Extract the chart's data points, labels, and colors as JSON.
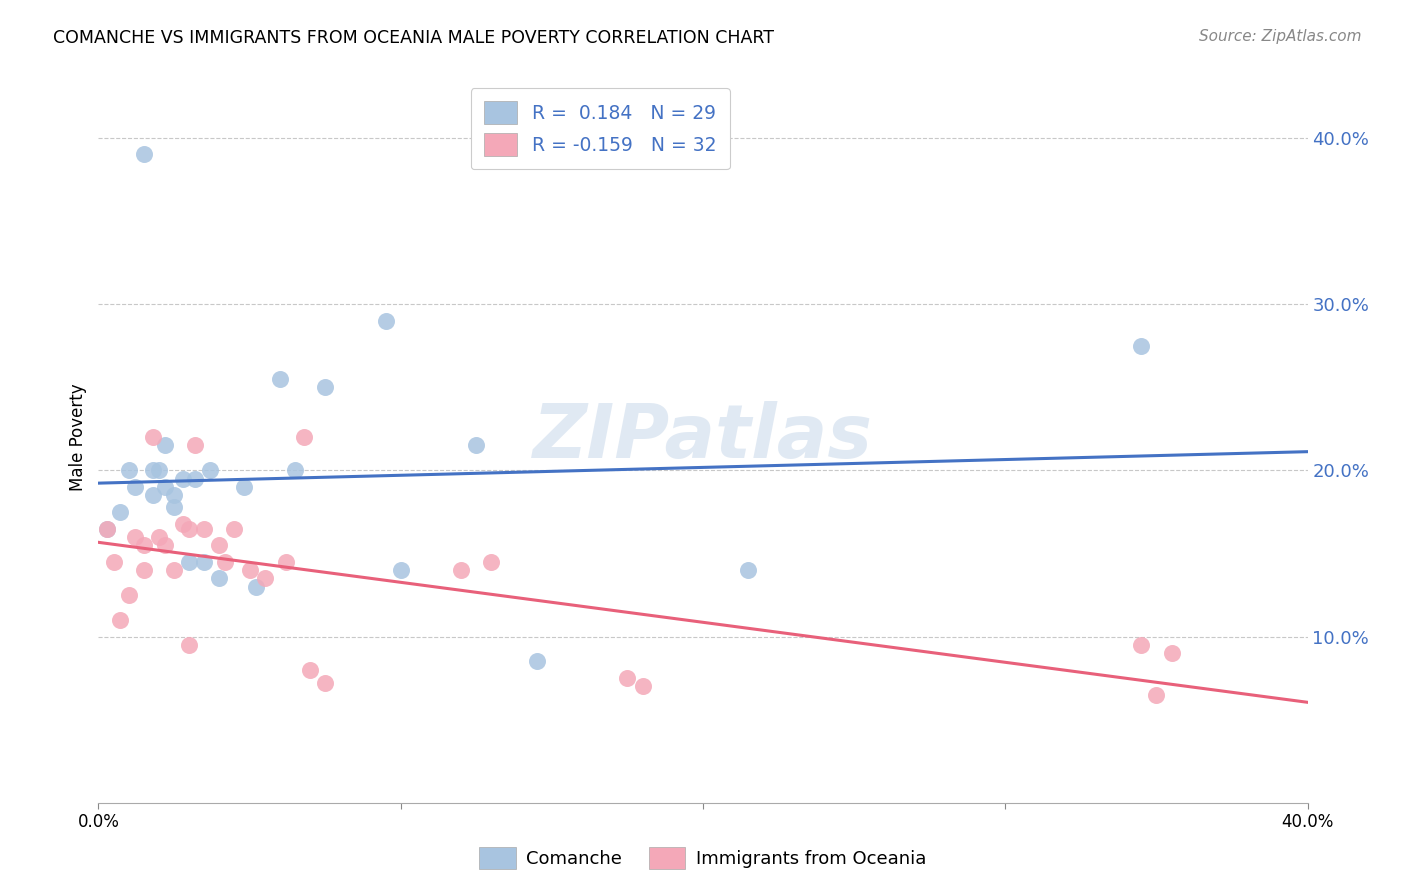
{
  "title": "COMANCHE VS IMMIGRANTS FROM OCEANIA MALE POVERTY CORRELATION CHART",
  "source": "Source: ZipAtlas.com",
  "ylabel": "Male Poverty",
  "watermark": "ZIPatlas",
  "xlim": [
    0.0,
    0.4
  ],
  "ylim": [
    0.0,
    0.44
  ],
  "yticks": [
    0.1,
    0.2,
    0.3,
    0.4
  ],
  "ytick_labels": [
    "10.0%",
    "20.0%",
    "30.0%",
    "40.0%"
  ],
  "xticks": [
    0.0,
    0.1,
    0.2,
    0.3,
    0.4
  ],
  "xtick_labels": [
    "0.0%",
    "",
    "",
    "",
    "40.0%"
  ],
  "comanche_R": 0.184,
  "comanche_N": 29,
  "oceania_R": -0.159,
  "oceania_N": 32,
  "comanche_color": "#a8c4e0",
  "oceania_color": "#f4a8b8",
  "comanche_line_color": "#4472c4",
  "oceania_line_color": "#e8607a",
  "background_color": "#ffffff",
  "grid_color": "#c8c8c8",
  "comanche_x": [
    0.003,
    0.007,
    0.01,
    0.012,
    0.015,
    0.018,
    0.018,
    0.02,
    0.022,
    0.022,
    0.025,
    0.025,
    0.028,
    0.03,
    0.032,
    0.035,
    0.037,
    0.04,
    0.048,
    0.052,
    0.06,
    0.065,
    0.075,
    0.095,
    0.1,
    0.125,
    0.145,
    0.215,
    0.345
  ],
  "comanche_y": [
    0.165,
    0.175,
    0.2,
    0.19,
    0.39,
    0.2,
    0.185,
    0.2,
    0.19,
    0.215,
    0.185,
    0.178,
    0.195,
    0.145,
    0.195,
    0.145,
    0.2,
    0.135,
    0.19,
    0.13,
    0.255,
    0.2,
    0.25,
    0.29,
    0.14,
    0.215,
    0.085,
    0.14,
    0.275
  ],
  "oceania_x": [
    0.003,
    0.005,
    0.007,
    0.01,
    0.012,
    0.015,
    0.015,
    0.018,
    0.02,
    0.022,
    0.025,
    0.028,
    0.03,
    0.03,
    0.032,
    0.035,
    0.04,
    0.042,
    0.045,
    0.05,
    0.055,
    0.062,
    0.068,
    0.07,
    0.075,
    0.12,
    0.13,
    0.175,
    0.18,
    0.345,
    0.35,
    0.355
  ],
  "oceania_y": [
    0.165,
    0.145,
    0.11,
    0.125,
    0.16,
    0.155,
    0.14,
    0.22,
    0.16,
    0.155,
    0.14,
    0.168,
    0.165,
    0.095,
    0.215,
    0.165,
    0.155,
    0.145,
    0.165,
    0.14,
    0.135,
    0.145,
    0.22,
    0.08,
    0.072,
    0.14,
    0.145,
    0.075,
    0.07,
    0.095,
    0.065,
    0.09
  ],
  "legend_label1": "R =  0.184   N = 29",
  "legend_label2": "R = -0.159   N = 32",
  "bottom_legend": [
    "Comanche",
    "Immigrants from Oceania"
  ]
}
